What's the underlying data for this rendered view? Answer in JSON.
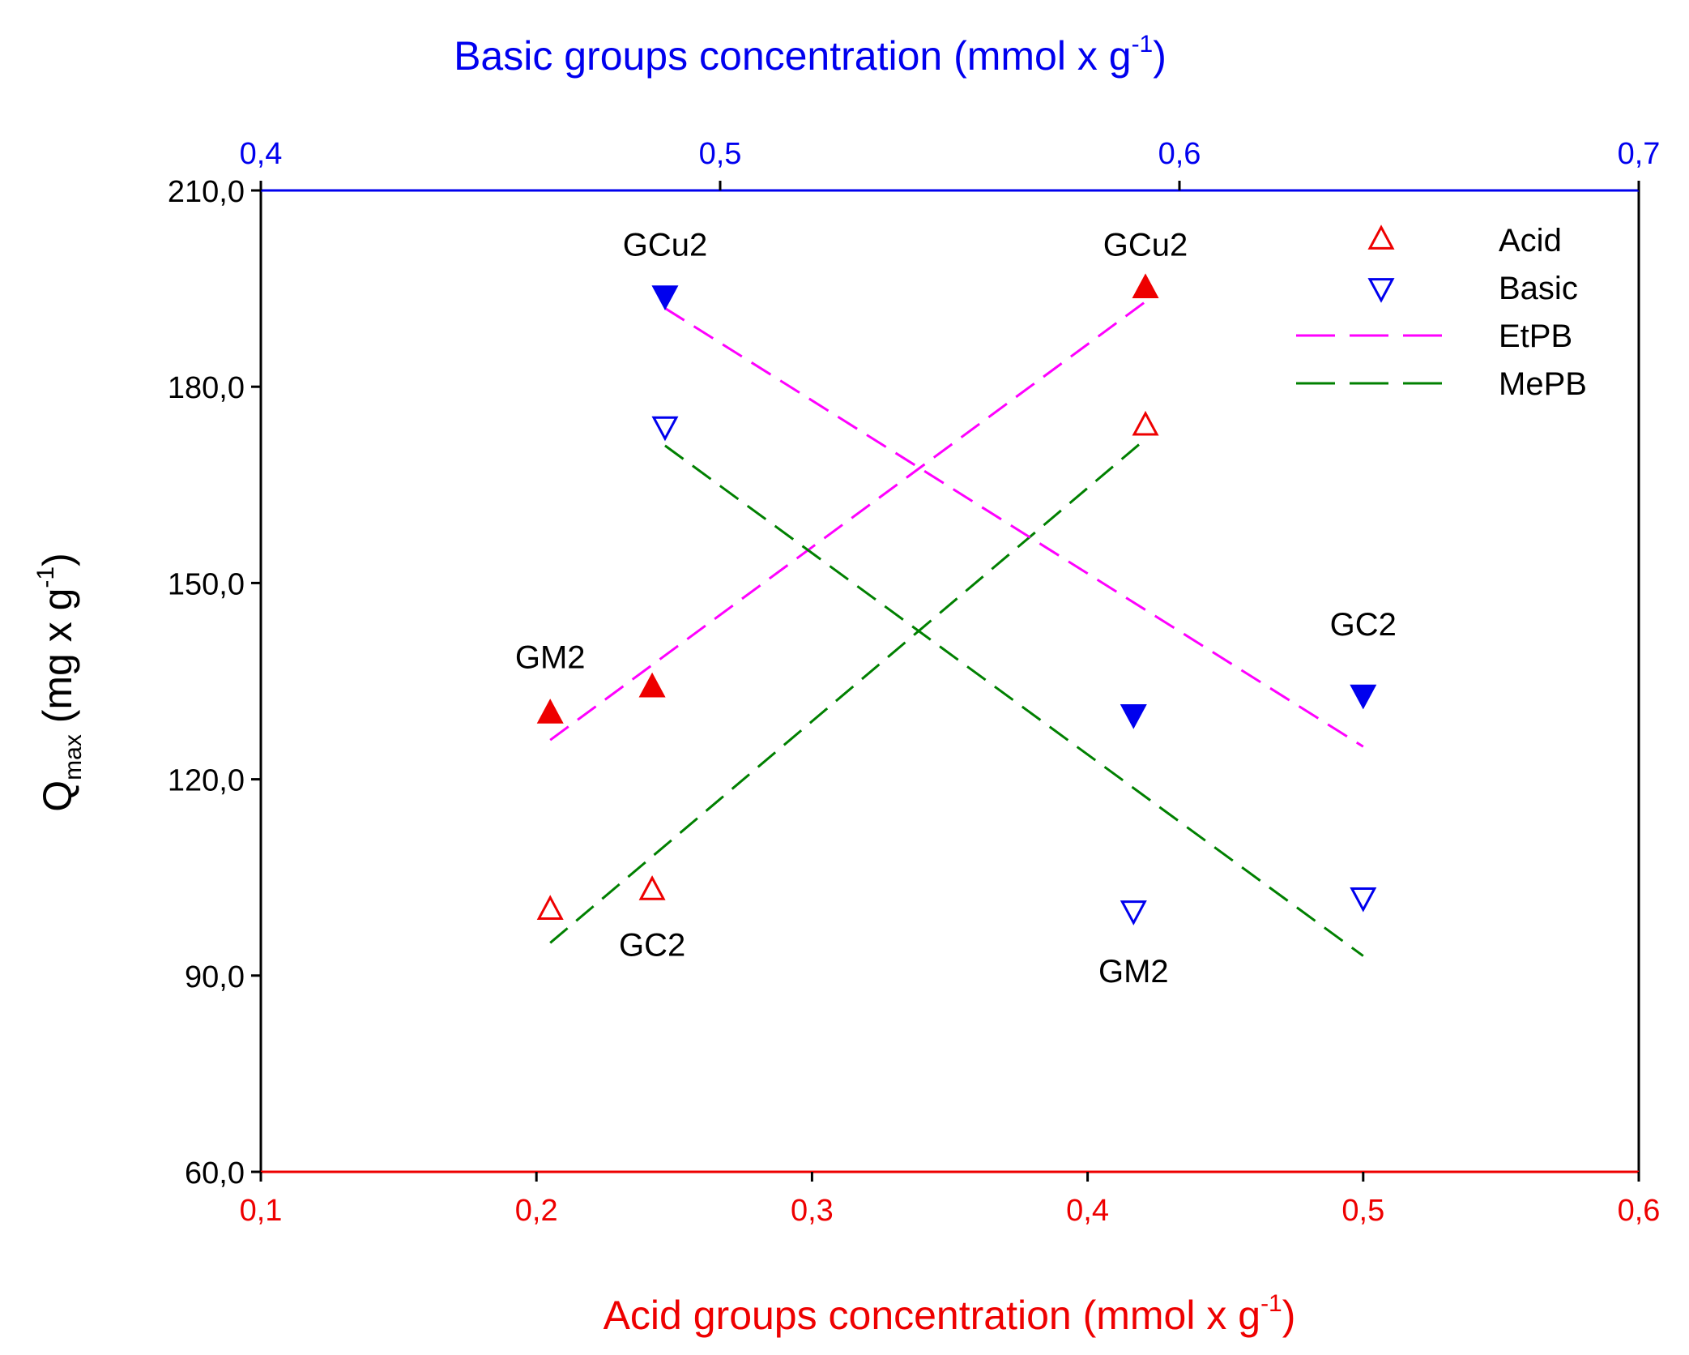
{
  "chart_data": {
    "type": "scatter",
    "top_axis": {
      "label": "Basic groups concentration (mmol x g",
      "label_sup": "-1",
      "label_tail": ")",
      "range": [
        0.4,
        0.7
      ],
      "ticks": [
        "0,4",
        "0,5",
        "0,6",
        "0,7"
      ],
      "color": "#0000ee"
    },
    "bottom_axis": {
      "label": "Acid groups concentration (mmol x g",
      "label_sup": "-1",
      "label_tail": ")",
      "range": [
        0.1,
        0.6
      ],
      "ticks": [
        "0,1",
        "0,2",
        "0,3",
        "0,4",
        "0,5",
        "0,6"
      ],
      "color": "#ee0000"
    },
    "y_axis": {
      "label_main": "Q",
      "label_sub": "max",
      "label_rest": " (mg x g",
      "label_sup": "-1",
      "label_tail": ")",
      "range": [
        60,
        210
      ],
      "ticks": [
        "60,0",
        "90,0",
        "120,0",
        "150,0",
        "180,0",
        "210,0"
      ]
    },
    "series": [
      {
        "name": "Acid EtPB",
        "axis": "acid",
        "marker": "triangle-up",
        "filled": true,
        "color": "#ee0000",
        "points": [
          {
            "x": 0.205,
            "y": 130
          },
          {
            "x": 0.242,
            "y": 134
          },
          {
            "x": 0.421,
            "y": 195
          }
        ]
      },
      {
        "name": "Acid MePB",
        "axis": "acid",
        "marker": "triangle-up",
        "filled": false,
        "color": "#ee0000",
        "points": [
          {
            "x": 0.205,
            "y": 100
          },
          {
            "x": 0.242,
            "y": 103
          },
          {
            "x": 0.421,
            "y": 174
          }
        ]
      },
      {
        "name": "Basic EtPB",
        "axis": "basic",
        "marker": "triangle-down",
        "filled": true,
        "color": "#0000ee",
        "points": [
          {
            "x": 0.488,
            "y": 194
          },
          {
            "x": 0.59,
            "y": 130
          },
          {
            "x": 0.64,
            "y": 133
          }
        ]
      },
      {
        "name": "Basic MePB",
        "axis": "basic",
        "marker": "triangle-down",
        "filled": false,
        "color": "#0000ee",
        "points": [
          {
            "x": 0.488,
            "y": 174
          },
          {
            "x": 0.59,
            "y": 100
          },
          {
            "x": 0.64,
            "y": 102
          }
        ]
      }
    ],
    "fit_lines": [
      {
        "name": "EtPB acid fit",
        "axis": "acid",
        "color": "#ff00ff",
        "from": [
          0.205,
          126
        ],
        "to": [
          0.421,
          193
        ]
      },
      {
        "name": "MePB acid fit",
        "axis": "acid",
        "color": "#008000",
        "from": [
          0.205,
          95
        ],
        "to": [
          0.421,
          172
        ]
      },
      {
        "name": "EtPB basic fit",
        "axis": "basic",
        "color": "#ff00ff",
        "from": [
          0.488,
          192
        ],
        "to": [
          0.64,
          125
        ]
      },
      {
        "name": "MePB basic fit",
        "axis": "basic",
        "color": "#008000",
        "from": [
          0.488,
          171
        ],
        "to": [
          0.64,
          93
        ]
      }
    ],
    "annotations": [
      {
        "text": "GCu2",
        "axis": "basic",
        "x": 0.488,
        "y": 200
      },
      {
        "text": "GCu2",
        "axis": "acid",
        "x": 0.421,
        "y": 200
      },
      {
        "text": "GM2",
        "axis": "acid",
        "x": 0.205,
        "y": 137
      },
      {
        "text": "GC2",
        "axis": "acid",
        "x": 0.242,
        "y": 93
      },
      {
        "text": "GC2",
        "axis": "basic",
        "x": 0.64,
        "y": 142
      },
      {
        "text": "GM2",
        "axis": "basic",
        "x": 0.59,
        "y": 89
      }
    ],
    "legend": {
      "position": "top-right",
      "items": [
        {
          "label": "Acid",
          "kind": "triangle-up",
          "color": "#ee0000"
        },
        {
          "label": "Basic",
          "kind": "triangle-down",
          "color": "#0000ee"
        },
        {
          "label": "EtPB",
          "kind": "dash",
          "color": "#ff00ff"
        },
        {
          "label": "MePB",
          "kind": "dash",
          "color": "#008000"
        }
      ]
    }
  }
}
